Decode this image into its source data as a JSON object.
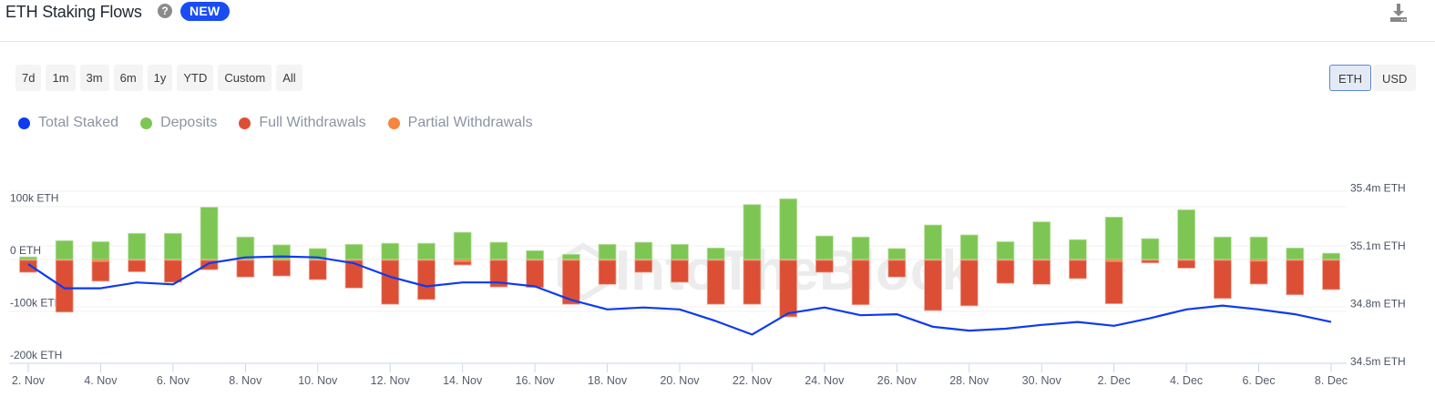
{
  "header": {
    "title": "ETH Staking Flows",
    "help_icon": "question-circle-icon",
    "badge": "NEW",
    "download_icon": "download-icon"
  },
  "range_buttons": [
    "7d",
    "1m",
    "3m",
    "6m",
    "1y",
    "YTD",
    "Custom",
    "All"
  ],
  "unit_buttons": [
    {
      "label": "ETH",
      "active": true
    },
    {
      "label": "USD",
      "active": false
    }
  ],
  "legend": [
    {
      "label": "Total Staked",
      "color": "#0d3bf0"
    },
    {
      "label": "Deposits",
      "color": "#7ec654"
    },
    {
      "label": "Full Withdrawals",
      "color": "#dc4f35"
    },
    {
      "label": "Partial Withdrawals",
      "color": "#f5863c"
    }
  ],
  "watermark": "IntoTheBlock",
  "chart_data": {
    "type": "bar+line",
    "title": "ETH Staking Flows",
    "x_labels": [
      "2. Nov",
      "4. Nov",
      "6. Nov",
      "8. Nov",
      "10. Nov",
      "12. Nov",
      "14. Nov",
      "16. Nov",
      "18. Nov",
      "20. Nov",
      "22. Nov",
      "24. Nov",
      "26. Nov",
      "28. Nov",
      "30. Nov",
      "2. Dec",
      "4. Dec",
      "6. Dec",
      "8. Dec"
    ],
    "dates": [
      "2 Nov",
      "3 Nov",
      "4 Nov",
      "5 Nov",
      "6 Nov",
      "7 Nov",
      "8 Nov",
      "9 Nov",
      "10 Nov",
      "11 Nov",
      "12 Nov",
      "13 Nov",
      "14 Nov",
      "15 Nov",
      "16 Nov",
      "17 Nov",
      "18 Nov",
      "19 Nov",
      "20 Nov",
      "21 Nov",
      "22 Nov",
      "23 Nov",
      "24 Nov",
      "25 Nov",
      "26 Nov",
      "27 Nov",
      "28 Nov",
      "29 Nov",
      "30 Nov",
      "1 Dec",
      "2 Dec",
      "3 Dec",
      "4 Dec",
      "5 Dec",
      "6 Dec",
      "7 Dec",
      "8 Dec"
    ],
    "left_axis": {
      "ticks": [
        "100k ETH",
        "0 ETH",
        "-100k ETH",
        "-200k ETH"
      ],
      "values": [
        100000,
        0,
        -100000,
        -200000
      ],
      "range": [
        -200000,
        130000
      ]
    },
    "right_axis": {
      "ticks": [
        "35.4m ETH",
        "35.1m ETH",
        "34.8m ETH",
        "34.5m ETH"
      ],
      "values": [
        35.4,
        35.1,
        34.8,
        34.5
      ],
      "unit": "m ETH"
    },
    "series": [
      {
        "name": "Deposits",
        "axis": "left",
        "type": "bar",
        "values": [
          5000,
          36000,
          34000,
          50000,
          50000,
          100000,
          43000,
          28000,
          21000,
          29000,
          31000,
          31000,
          52000,
          33000,
          17000,
          10000,
          29000,
          33000,
          29000,
          22000,
          105000,
          116000,
          45000,
          43000,
          21000,
          66000,
          47000,
          34000,
          72000,
          38000,
          81000,
          40000,
          95000,
          43000,
          43000,
          22000,
          12000
        ]
      },
      {
        "name": "Full Withdrawals",
        "axis": "left",
        "type": "bar",
        "values": [
          -23000,
          -99000,
          -38000,
          -22000,
          -42000,
          -18000,
          -32000,
          -30000,
          -37000,
          -53000,
          -84000,
          -75000,
          -7000,
          -51000,
          -52000,
          -84000,
          -46000,
          -23000,
          -42000,
          -84000,
          -84000,
          -108000,
          -23000,
          -85000,
          -32000,
          -96000,
          -87000,
          -44000,
          -46000,
          -35000,
          -81000,
          -5000,
          -15000,
          -73000,
          -44000,
          -66000,
          -56000
        ]
      },
      {
        "name": "Partial Withdrawals",
        "axis": "left",
        "type": "bar",
        "values": [
          -1500,
          -1500,
          -3500,
          -1500,
          -1500,
          -1500,
          -1500,
          -1500,
          -1500,
          -1500,
          -1500,
          -1500,
          -3500,
          -1500,
          -1500,
          -1500,
          -1500,
          -1500,
          -1500,
          -1500,
          -1500,
          -1500,
          -1500,
          -1500,
          -1500,
          -1500,
          -1500,
          -1500,
          -1500,
          -1500,
          -3500,
          -1500,
          -1500,
          -1500,
          -3000,
          -1500,
          -1500
        ]
      },
      {
        "name": "Total Staked",
        "axis": "right",
        "type": "line",
        "unit": "m ETH",
        "values": [
          35.005,
          34.88,
          34.88,
          34.91,
          34.9,
          35.01,
          35.04,
          35.045,
          35.04,
          35.01,
          34.94,
          34.89,
          34.91,
          34.91,
          34.89,
          34.82,
          34.77,
          34.78,
          34.77,
          34.71,
          34.64,
          34.75,
          34.78,
          34.74,
          34.745,
          34.68,
          34.66,
          34.67,
          34.69,
          34.705,
          34.685,
          34.725,
          34.77,
          34.79,
          34.77,
          34.745,
          34.705
        ]
      }
    ],
    "grid": true,
    "legend_position": "top-left"
  }
}
